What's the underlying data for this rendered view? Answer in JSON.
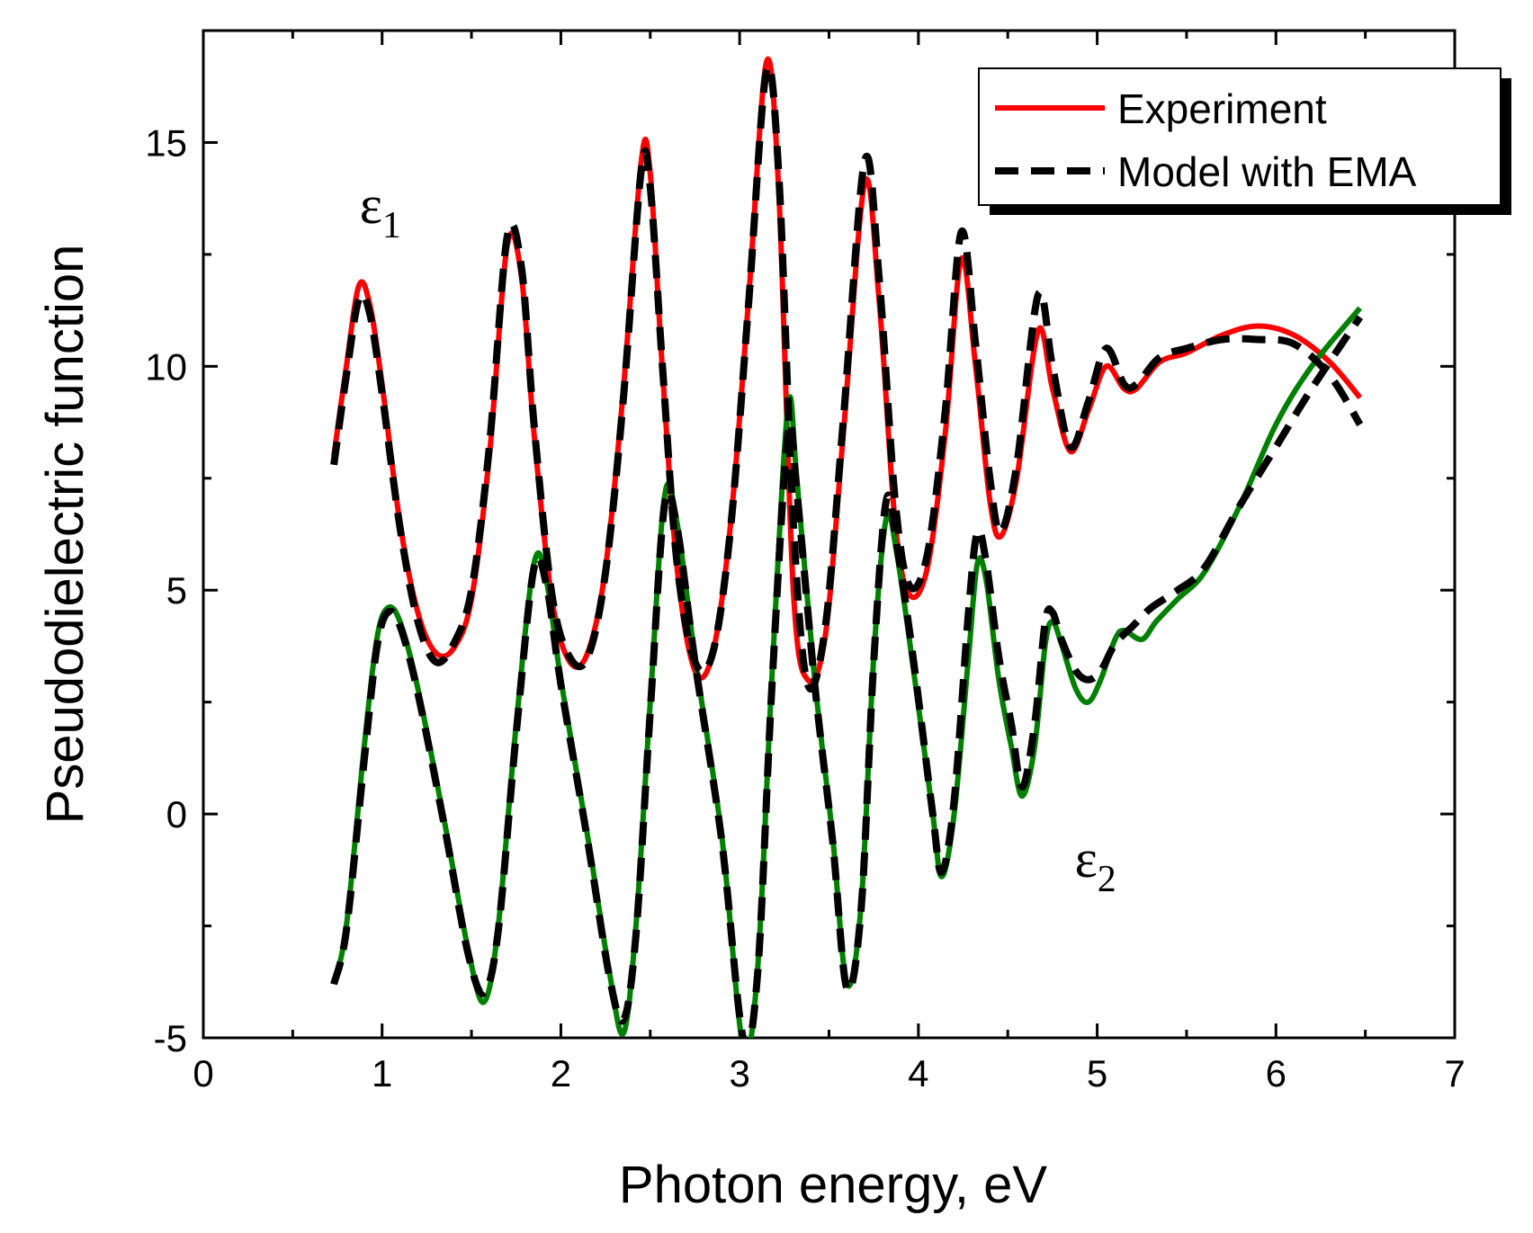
{
  "chart_data": {
    "type": "line",
    "xlabel": "Photon energy, eV",
    "ylabel": "Pseudodielectric function",
    "xlim": [
      0,
      7
    ],
    "ylim": [
      -5,
      17.5
    ],
    "xticks": [
      0,
      1,
      2,
      3,
      4,
      5,
      6,
      7
    ],
    "yticks": [
      -5,
      0,
      5,
      10,
      15
    ],
    "grid": false,
    "legend": {
      "position": "top-right",
      "entries": [
        {
          "label": "Experiment",
          "style": "solid",
          "color": "#ff0000"
        },
        {
          "label": "Model with EMA",
          "style": "dashed",
          "color": "#000000"
        }
      ]
    },
    "annotations": [
      {
        "text": "ε",
        "subscript": "1",
        "x": 1.0,
        "y": 13.6
      },
      {
        "text": "ε",
        "subscript": "2",
        "x": 5.0,
        "y": -1.0
      }
    ],
    "series": [
      {
        "name": "Experiment",
        "component": "ε1",
        "color": "#ff0000",
        "style": "solid",
        "points": [
          [
            0.73,
            8.0
          ],
          [
            0.8,
            10.0
          ],
          [
            0.87,
            11.8
          ],
          [
            0.93,
            11.4
          ],
          [
            1.0,
            9.6
          ],
          [
            1.1,
            6.5
          ],
          [
            1.2,
            4.5
          ],
          [
            1.3,
            3.6
          ],
          [
            1.4,
            3.7
          ],
          [
            1.5,
            4.8
          ],
          [
            1.6,
            8.0
          ],
          [
            1.7,
            12.7
          ],
          [
            1.78,
            12.0
          ],
          [
            1.85,
            8.5
          ],
          [
            1.95,
            4.8
          ],
          [
            2.05,
            3.4
          ],
          [
            2.15,
            3.6
          ],
          [
            2.25,
            5.5
          ],
          [
            2.35,
            9.5
          ],
          [
            2.45,
            14.6
          ],
          [
            2.5,
            14.3
          ],
          [
            2.57,
            9.8
          ],
          [
            2.65,
            5.5
          ],
          [
            2.75,
            3.2
          ],
          [
            2.85,
            3.6
          ],
          [
            2.95,
            6.5
          ],
          [
            3.05,
            11.5
          ],
          [
            3.15,
            16.8
          ],
          [
            3.22,
            13.8
          ],
          [
            3.3,
            5.0
          ],
          [
            3.38,
            3.0
          ],
          [
            3.48,
            4.0
          ],
          [
            3.58,
            8.5
          ],
          [
            3.7,
            14.1
          ],
          [
            3.78,
            11.5
          ],
          [
            3.87,
            6.5
          ],
          [
            3.95,
            4.9
          ],
          [
            4.05,
            5.5
          ],
          [
            4.15,
            8.5
          ],
          [
            4.24,
            12.4
          ],
          [
            4.32,
            10.0
          ],
          [
            4.4,
            7.0
          ],
          [
            4.46,
            6.2
          ],
          [
            4.55,
            7.5
          ],
          [
            4.67,
            10.8
          ],
          [
            4.75,
            9.5
          ],
          [
            4.85,
            8.1
          ],
          [
            4.95,
            9.0
          ],
          [
            5.05,
            10.0
          ],
          [
            5.15,
            9.5
          ],
          [
            5.22,
            9.5
          ],
          [
            5.35,
            10.1
          ],
          [
            5.5,
            10.3
          ],
          [
            5.7,
            10.7
          ],
          [
            5.9,
            10.9
          ],
          [
            6.1,
            10.7
          ],
          [
            6.3,
            10.1
          ],
          [
            6.47,
            9.3
          ]
        ]
      },
      {
        "name": "Experiment",
        "component": "ε2",
        "color": "#008000",
        "style": "solid",
        "points": [
          [
            0.73,
            -3.8
          ],
          [
            0.8,
            -2.5
          ],
          [
            0.9,
            1.5
          ],
          [
            0.97,
            3.9
          ],
          [
            1.03,
            4.6
          ],
          [
            1.1,
            4.3
          ],
          [
            1.2,
            2.8
          ],
          [
            1.35,
            -0.2
          ],
          [
            1.48,
            -3.0
          ],
          [
            1.57,
            -4.2
          ],
          [
            1.65,
            -2.5
          ],
          [
            1.75,
            2.0
          ],
          [
            1.85,
            5.6
          ],
          [
            1.92,
            5.2
          ],
          [
            2.0,
            3.0
          ],
          [
            2.15,
            -0.5
          ],
          [
            2.27,
            -3.5
          ],
          [
            2.35,
            -4.9
          ],
          [
            2.42,
            -2.5
          ],
          [
            2.5,
            2.5
          ],
          [
            2.58,
            7.1
          ],
          [
            2.65,
            6.5
          ],
          [
            2.75,
            3.5
          ],
          [
            2.9,
            -0.5
          ],
          [
            3.02,
            -5.2
          ],
          [
            3.1,
            -3.5
          ],
          [
            3.18,
            3.0
          ],
          [
            3.27,
            9.1
          ],
          [
            3.32,
            7.5
          ],
          [
            3.42,
            3.0
          ],
          [
            3.52,
            -0.5
          ],
          [
            3.6,
            -3.8
          ],
          [
            3.68,
            -2.0
          ],
          [
            3.75,
            3.5
          ],
          [
            3.82,
            6.6
          ],
          [
            3.88,
            5.8
          ],
          [
            3.98,
            3.0
          ],
          [
            4.08,
            0.0
          ],
          [
            4.13,
            -1.4
          ],
          [
            4.2,
            0.0
          ],
          [
            4.28,
            3.5
          ],
          [
            4.33,
            5.6
          ],
          [
            4.38,
            5.2
          ],
          [
            4.45,
            3.0
          ],
          [
            4.52,
            1.5
          ],
          [
            4.58,
            0.4
          ],
          [
            4.65,
            1.5
          ],
          [
            4.71,
            3.8
          ],
          [
            4.75,
            4.3
          ],
          [
            4.8,
            3.8
          ],
          [
            4.88,
            2.8
          ],
          [
            4.95,
            2.5
          ],
          [
            5.02,
            3.0
          ],
          [
            5.1,
            3.9
          ],
          [
            5.15,
            4.1
          ],
          [
            5.25,
            3.9
          ],
          [
            5.33,
            4.3
          ],
          [
            5.45,
            4.8
          ],
          [
            5.6,
            5.4
          ],
          [
            5.8,
            6.9
          ],
          [
            6.0,
            8.7
          ],
          [
            6.2,
            10.0
          ],
          [
            6.47,
            11.3
          ]
        ]
      },
      {
        "name": "Model with EMA",
        "component": "ε1",
        "color": "#000000",
        "style": "dashed",
        "points": [
          [
            0.73,
            7.8
          ],
          [
            0.8,
            9.8
          ],
          [
            0.87,
            11.5
          ],
          [
            0.93,
            11.2
          ],
          [
            1.0,
            9.4
          ],
          [
            1.1,
            6.4
          ],
          [
            1.2,
            4.3
          ],
          [
            1.3,
            3.4
          ],
          [
            1.4,
            3.8
          ],
          [
            1.5,
            5.0
          ],
          [
            1.6,
            8.2
          ],
          [
            1.7,
            12.9
          ],
          [
            1.78,
            12.2
          ],
          [
            1.85,
            8.7
          ],
          [
            1.95,
            4.9
          ],
          [
            2.05,
            3.5
          ],
          [
            2.15,
            3.5
          ],
          [
            2.25,
            5.4
          ],
          [
            2.35,
            9.3
          ],
          [
            2.45,
            14.4
          ],
          [
            2.5,
            14.0
          ],
          [
            2.57,
            9.9
          ],
          [
            2.65,
            5.6
          ],
          [
            2.75,
            3.4
          ],
          [
            2.85,
            3.6
          ],
          [
            2.95,
            6.4
          ],
          [
            3.05,
            11.4
          ],
          [
            3.15,
            16.6
          ],
          [
            3.22,
            14.2
          ],
          [
            3.3,
            6.5
          ],
          [
            3.38,
            2.9
          ],
          [
            3.48,
            4.2
          ],
          [
            3.58,
            8.8
          ],
          [
            3.7,
            14.6
          ],
          [
            3.78,
            12.0
          ],
          [
            3.87,
            7.0
          ],
          [
            3.95,
            5.1
          ],
          [
            4.05,
            5.8
          ],
          [
            4.15,
            9.0
          ],
          [
            4.24,
            13.0
          ],
          [
            4.32,
            10.5
          ],
          [
            4.4,
            7.5
          ],
          [
            4.46,
            6.3
          ],
          [
            4.55,
            7.8
          ],
          [
            4.67,
            11.6
          ],
          [
            4.75,
            10.0
          ],
          [
            4.85,
            8.2
          ],
          [
            4.95,
            9.2
          ],
          [
            5.05,
            10.4
          ],
          [
            5.15,
            9.6
          ],
          [
            5.22,
            9.6
          ],
          [
            5.35,
            10.2
          ],
          [
            5.5,
            10.4
          ],
          [
            5.7,
            10.6
          ],
          [
            5.9,
            10.6
          ],
          [
            6.1,
            10.5
          ],
          [
            6.3,
            9.8
          ],
          [
            6.47,
            8.7
          ]
        ]
      },
      {
        "name": "Model with EMA",
        "component": "ε2",
        "color": "#000000",
        "style": "dashed",
        "points": [
          [
            0.73,
            -3.8
          ],
          [
            0.8,
            -2.6
          ],
          [
            0.9,
            1.2
          ],
          [
            0.97,
            3.7
          ],
          [
            1.03,
            4.5
          ],
          [
            1.1,
            4.2
          ],
          [
            1.2,
            2.7
          ],
          [
            1.35,
            -0.3
          ],
          [
            1.48,
            -3.1
          ],
          [
            1.57,
            -4.0
          ],
          [
            1.65,
            -2.6
          ],
          [
            1.75,
            1.8
          ],
          [
            1.85,
            5.5
          ],
          [
            1.92,
            5.1
          ],
          [
            2.0,
            2.9
          ],
          [
            2.15,
            -0.6
          ],
          [
            2.27,
            -3.6
          ],
          [
            2.35,
            -4.6
          ],
          [
            2.42,
            -2.7
          ],
          [
            2.5,
            2.3
          ],
          [
            2.58,
            6.9
          ],
          [
            2.65,
            6.4
          ],
          [
            2.75,
            3.4
          ],
          [
            2.9,
            -0.6
          ],
          [
            3.02,
            -5.0
          ],
          [
            3.1,
            -3.6
          ],
          [
            3.18,
            2.8
          ],
          [
            3.27,
            8.5
          ],
          [
            3.32,
            7.2
          ],
          [
            3.42,
            2.9
          ],
          [
            3.52,
            -0.6
          ],
          [
            3.6,
            -3.9
          ],
          [
            3.68,
            -2.1
          ],
          [
            3.75,
            3.4
          ],
          [
            3.82,
            7.0
          ],
          [
            3.88,
            6.0
          ],
          [
            3.98,
            3.2
          ],
          [
            4.08,
            0.0
          ],
          [
            4.13,
            -1.3
          ],
          [
            4.2,
            0.3
          ],
          [
            4.28,
            4.5
          ],
          [
            4.33,
            6.3
          ],
          [
            4.38,
            5.6
          ],
          [
            4.45,
            3.5
          ],
          [
            4.52,
            2.0
          ],
          [
            4.58,
            0.6
          ],
          [
            4.65,
            2.0
          ],
          [
            4.71,
            4.3
          ],
          [
            4.75,
            4.5
          ],
          [
            4.8,
            3.9
          ],
          [
            4.88,
            3.2
          ],
          [
            4.95,
            3.0
          ],
          [
            5.02,
            3.2
          ],
          [
            5.1,
            3.8
          ],
          [
            5.2,
            4.2
          ],
          [
            5.3,
            4.6
          ],
          [
            5.45,
            5.0
          ],
          [
            5.6,
            5.5
          ],
          [
            5.8,
            6.9
          ],
          [
            6.0,
            8.2
          ],
          [
            6.2,
            9.5
          ],
          [
            6.47,
            11.1
          ]
        ]
      }
    ]
  }
}
